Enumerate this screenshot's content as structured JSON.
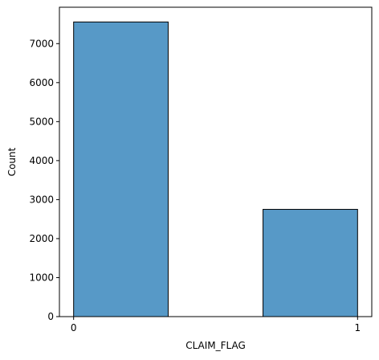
{
  "chart_data": {
    "type": "bar",
    "bins": [
      {
        "x_start": 0.0,
        "x_end": 0.333,
        "value": 7555
      },
      {
        "x_start": 0.667,
        "x_end": 1.0,
        "value": 2750
      }
    ],
    "xlabel": "CLAIM_FLAG",
    "ylabel": "Count",
    "x_ticks": [
      0,
      1
    ],
    "y_ticks": [
      0,
      1000,
      2000,
      3000,
      4000,
      5000,
      6000,
      7000
    ],
    "xlim": [
      -0.05,
      1.05
    ],
    "ylim": [
      0,
      7933
    ],
    "grid": false,
    "colors": {
      "bar_fill": "#5799c7",
      "bar_edge": "#000000",
      "axis": "#000000"
    }
  }
}
